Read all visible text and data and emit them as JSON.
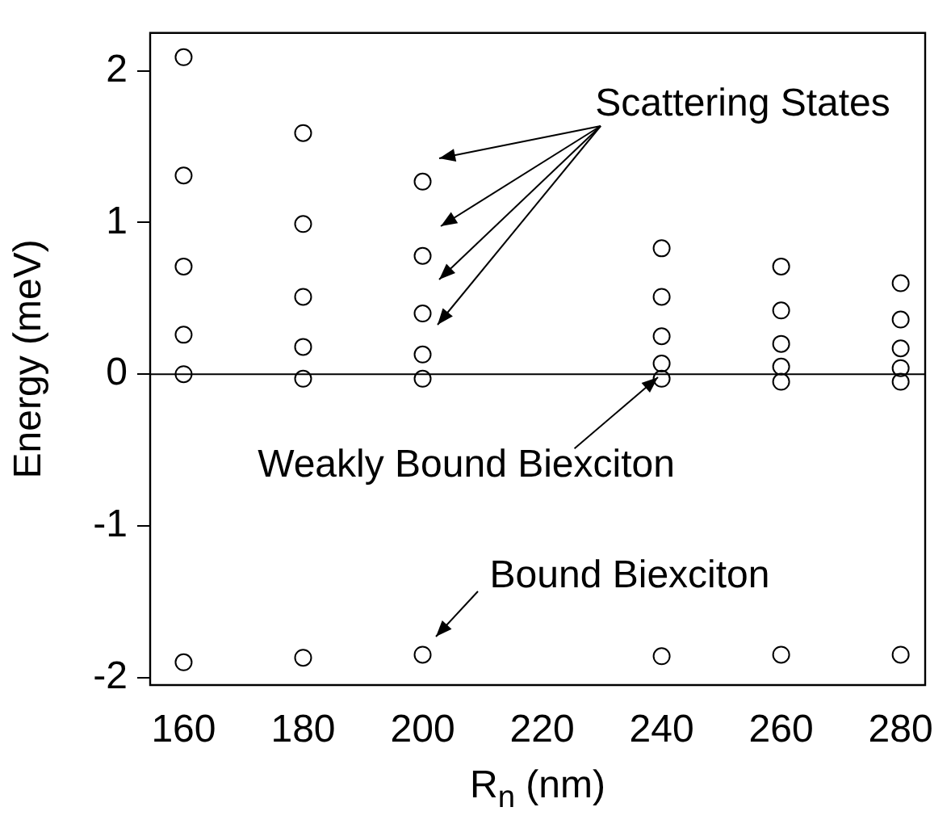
{
  "chart_data": {
    "type": "scatter",
    "xlabel": "R$_{n}$ (nm)",
    "ylabel": "Energy (meV)",
    "series": [
      {
        "color": "#000000",
        "marker": "circle",
        "x": [
          160,
          160,
          160,
          160,
          160,
          160,
          180,
          180,
          180,
          180,
          180,
          180,
          200,
          200,
          200,
          200,
          200,
          200,
          240,
          240,
          240,
          240,
          240,
          240,
          260,
          260,
          260,
          260,
          260,
          260,
          280,
          280,
          280,
          280,
          280,
          280
        ],
        "values": [
          2.09,
          1.31,
          0.71,
          0.26,
          0,
          -1.9,
          1.59,
          0.99,
          0.51,
          0.18,
          -0.03,
          -1.87,
          1.27,
          0.78,
          0.4,
          0.13,
          -0.03,
          -1.85,
          0.83,
          0.51,
          0.25,
          0.07,
          -0.03,
          -1.86,
          0.71,
          0.42,
          0.2,
          0.05,
          -0.05,
          -1.85,
          0.6,
          0.36,
          0.17,
          0.04,
          -0.05,
          -1.85
        ]
      }
    ],
    "xlim": [
      154.4,
      284.1
    ],
    "xticks": [
      160,
      180,
      200,
      220,
      240,
      260,
      280
    ],
    "ylim": [
      -2.05,
      2.25
    ],
    "yticks": [
      -2,
      -1,
      0,
      1,
      2
    ],
    "grid": false,
    "legend": false,
    "ref_lines": [
      {
        "axis": "y",
        "value": 0,
        "color": "#000000"
      }
    ],
    "annotations": [
      "Scattering States",
      {
        "text": "Weakly Bound Biexciton",
        "x": 240,
        "y": 0
      },
      "Bound Biexciton"
    ]
  }
}
